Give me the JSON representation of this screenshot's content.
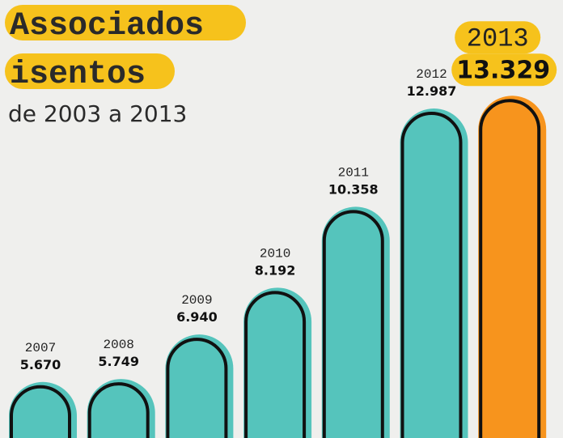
{
  "chart_data": {
    "type": "bar",
    "title": [
      "Associados",
      "isentos"
    ],
    "subtitle": "de 2003 a 2013",
    "categories": [
      "2007",
      "2008",
      "2009",
      "2010",
      "2011",
      "2012",
      "2013"
    ],
    "values": [
      5670,
      5749,
      6940,
      8192,
      10358,
      12987,
      13329
    ],
    "value_labels": [
      "5.670",
      "5.749",
      "6.940",
      "8.192",
      "10.358",
      "12.987",
      "13.329"
    ],
    "color": "#55c4bc",
    "highlight_color": "#f7941d",
    "highlight_index": 6,
    "ylim": [
      4300,
      13400
    ]
  }
}
